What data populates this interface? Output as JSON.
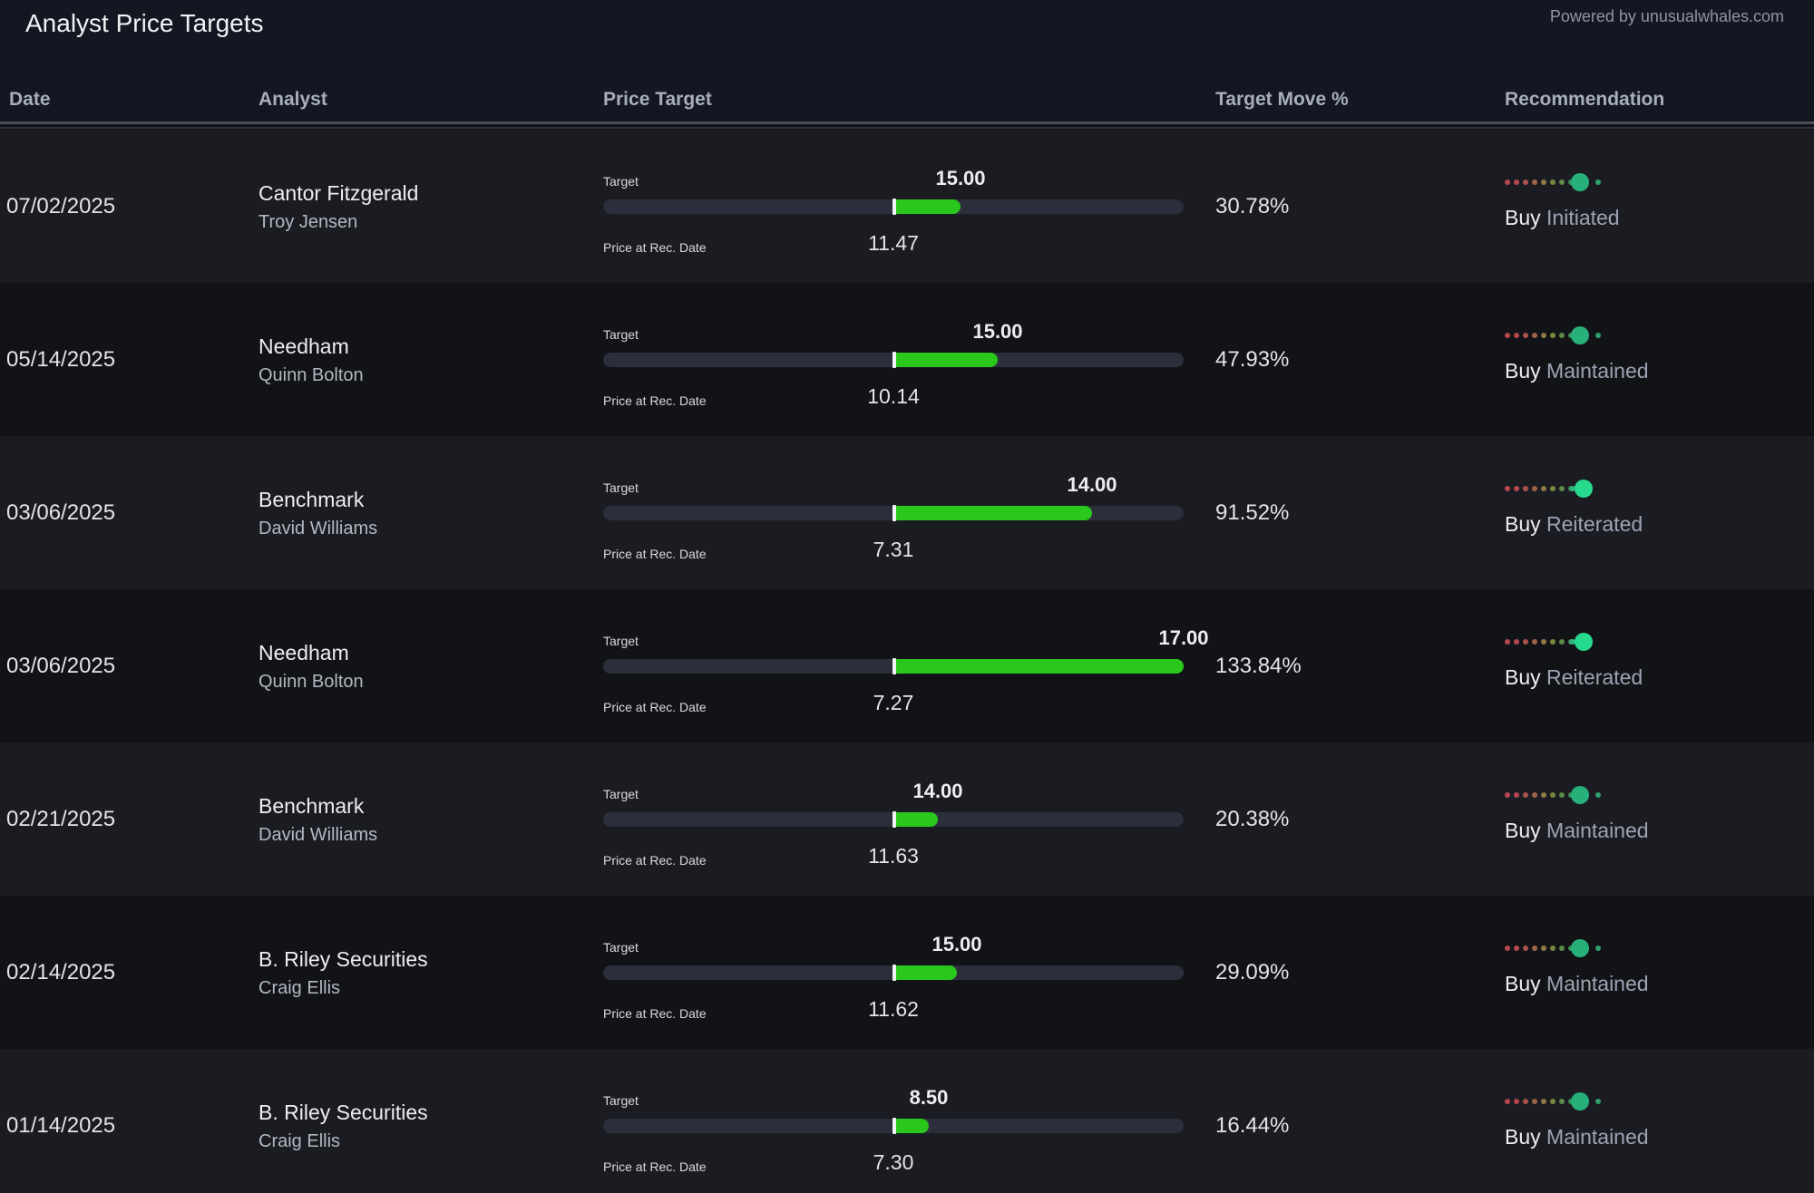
{
  "header": {
    "title": "Analyst Price Targets",
    "powered_by": "Powered by unusualwhales.com"
  },
  "columns": {
    "date": "Date",
    "analyst": "Analyst",
    "price_target": "Price Target",
    "target_move": "Target Move %",
    "recommendation": "Recommendation"
  },
  "labels": {
    "target": "Target",
    "price_at_rec": "Price at Rec. Date"
  },
  "colors": {
    "bar_fill": "#2ac71c",
    "bar_track": "#2c2f3b",
    "rating_dots": [
      "#b5474f",
      "#b5474f",
      "#a9534c",
      "#9c6547",
      "#8e7a44",
      "#7a8640",
      "#5d8a48",
      "#3d8f5c",
      "#2fb57e",
      "#2fa06d"
    ]
  },
  "rows": [
    {
      "date": "07/02/2025",
      "firm": "Cantor Fitzgerald",
      "analyst": "Troy Jensen",
      "target": "15.00",
      "price_at_rec": "11.47",
      "move_pct": "30.78%",
      "rating": "Buy",
      "action": "Initiated",
      "dot_index": 8
    },
    {
      "date": "05/14/2025",
      "firm": "Needham",
      "analyst": "Quinn Bolton",
      "target": "15.00",
      "price_at_rec": "10.14",
      "move_pct": "47.93%",
      "rating": "Buy",
      "action": "Maintained",
      "dot_index": 8
    },
    {
      "date": "03/06/2025",
      "firm": "Benchmark",
      "analyst": "David Williams",
      "target": "14.00",
      "price_at_rec": "7.31",
      "move_pct": "91.52%",
      "rating": "Buy",
      "action": "Reiterated",
      "dot_index": 9
    },
    {
      "date": "03/06/2025",
      "firm": "Needham",
      "analyst": "Quinn Bolton",
      "target": "17.00",
      "price_at_rec": "7.27",
      "move_pct": "133.84%",
      "rating": "Buy",
      "action": "Reiterated",
      "dot_index": 9
    },
    {
      "date": "02/21/2025",
      "firm": "Benchmark",
      "analyst": "David Williams",
      "target": "14.00",
      "price_at_rec": "11.63",
      "move_pct": "20.38%",
      "rating": "Buy",
      "action": "Maintained",
      "dot_index": 8
    },
    {
      "date": "02/14/2025",
      "firm": "B. Riley Securities",
      "analyst": "Craig Ellis",
      "target": "15.00",
      "price_at_rec": "11.62",
      "move_pct": "29.09%",
      "rating": "Buy",
      "action": "Maintained",
      "dot_index": 8
    },
    {
      "date": "01/14/2025",
      "firm": "B. Riley Securities",
      "analyst": "Craig Ellis",
      "target": "8.50",
      "price_at_rec": "7.30",
      "move_pct": "16.44%",
      "rating": "Buy",
      "action": "Maintained",
      "dot_index": 8
    }
  ]
}
